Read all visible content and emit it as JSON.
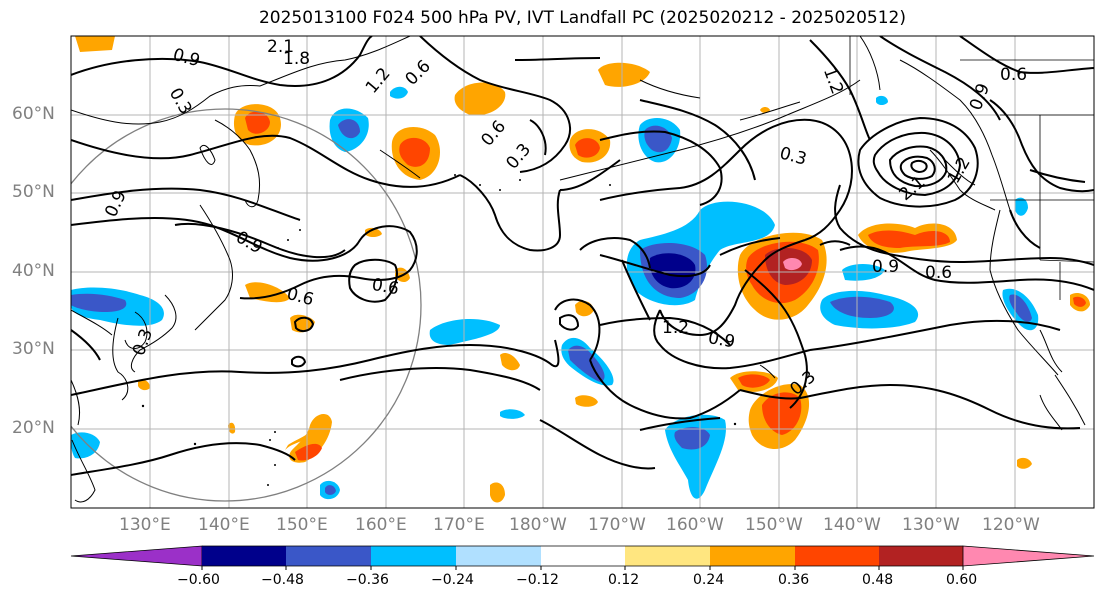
{
  "title": "2025013100 F024 500 hPa PV, IVT Landfall PC (2025020212 - 2025020512)",
  "lat_labels": [
    "60°N",
    "50°N",
    "40°N",
    "30°N",
    "20°N"
  ],
  "lon_labels": [
    "130°E",
    "140°E",
    "150°E",
    "160°E",
    "170°E",
    "180°W",
    "170°W",
    "160°W",
    "150°W",
    "140°W",
    "130°W",
    "120°W"
  ],
  "colorbar": {
    "colors": [
      "#9b30c8",
      "#00008b",
      "#3a57c8",
      "#00bfff",
      "#b0e0ff",
      "#ffffff",
      "#ffe680",
      "#ffa500",
      "#ff4500",
      "#b22222",
      "#ff88b0"
    ],
    "ticks": [
      "−0.60",
      "−0.48",
      "−0.36",
      "−0.24",
      "−0.12",
      "0.12",
      "0.24",
      "0.36",
      "0.48",
      "0.60"
    ]
  },
  "contour_labels": [
    "2.1",
    "1.8",
    "0.9",
    "0.3",
    "1.2",
    "0.6",
    "0.6",
    "0.3",
    "0.9",
    "0.9",
    "0.6",
    "0.6",
    "1.2",
    "0.9",
    "0.3",
    "1.2",
    "0.3",
    "0.9",
    "0.6",
    "2.1",
    "1.2",
    "0.9",
    "0.6",
    "0.3"
  ]
}
